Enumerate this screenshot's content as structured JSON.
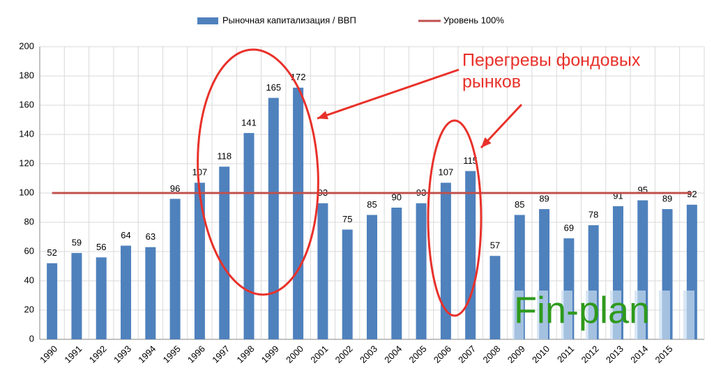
{
  "chart_data": {
    "type": "bar",
    "categories": [
      "1990",
      "1991",
      "1992",
      "1993",
      "1994",
      "1995",
      "1996",
      "1997",
      "1998",
      "1999",
      "2000",
      "2001",
      "2002",
      "2003",
      "2004",
      "2005",
      "2006",
      "2007",
      "2008",
      "2009",
      "2010",
      "2011",
      "2012",
      "2013",
      "2014",
      "2015",
      null
    ],
    "series": [
      {
        "name": "Рыночная капитализация / ВВП",
        "color": "#4f81bd",
        "type": "bar",
        "values": [
          52,
          59,
          56,
          64,
          63,
          96,
          107,
          118,
          141,
          165,
          172,
          93,
          75,
          85,
          90,
          93,
          107,
          115,
          57,
          85,
          89,
          69,
          78,
          91,
          95,
          89,
          92
        ]
      },
      {
        "name": "Уровень 100%",
        "color": "#c0504d",
        "type": "line",
        "values": [
          100,
          100,
          100,
          100,
          100,
          100,
          100,
          100,
          100,
          100,
          100,
          100,
          100,
          100,
          100,
          100,
          100,
          100,
          100,
          100,
          100,
          100,
          100,
          100,
          100,
          100,
          100
        ]
      }
    ],
    "ylim": [
      0,
      200
    ],
    "yticks": [
      0,
      20,
      40,
      60,
      80,
      100,
      120,
      140,
      160,
      180,
      200
    ],
    "grid": true,
    "annotation": [
      "Перегревы фондовых",
      "рынков"
    ],
    "annotation_color": "#e8312a",
    "watermark": "Fin-plan",
    "watermark_color": "#2e9a1c"
  }
}
